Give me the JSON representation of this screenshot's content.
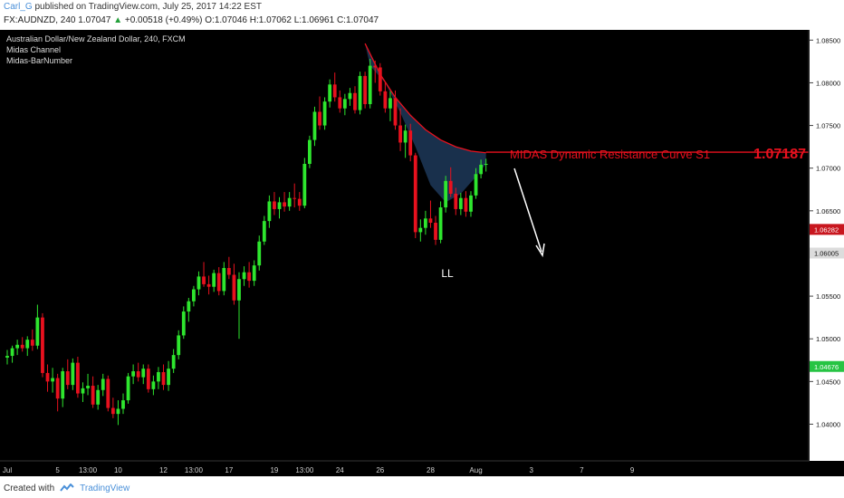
{
  "top": {
    "user": "Carl_G",
    "published": "published on TradingView.com, July 25, 2017 14:22 EST"
  },
  "info": {
    "symbol": "FX:AUDNZD, 240",
    "price": "1.07047",
    "change": "+0.00518 (+0.49%)",
    "ohlc": "O:1.07046 H:1.07062 L:1.06961 C:1.07047"
  },
  "footer": {
    "created": "Created with",
    "brand": "TradingView"
  },
  "colors": {
    "bg": "#000000",
    "up": "#2ee62e",
    "down": "#e8111e",
    "curve": "#e8111e",
    "fill": "#1c3554",
    "arrow": "#ffffff"
  },
  "chart_data": {
    "type": "candlestick",
    "header": [
      "Australian Dollar/New Zealand Dollar, 240, FXCM",
      "Midas Channel",
      "Midas-BarNumber"
    ],
    "ylim": [
      1.0357,
      1.0862
    ],
    "y_ticks": [
      "1.08500",
      "1.08000",
      "1.07500",
      "1.07000",
      "1.06500",
      "1.05500",
      "1.05000",
      "1.04500",
      "1.04000"
    ],
    "price_labels": [
      {
        "value": 1.06282,
        "text": "1.06282",
        "bg": "#c8161e",
        "fg": "#ffffff"
      },
      {
        "value": 1.06005,
        "text": "1.06005",
        "bg": "#dcdcdc",
        "fg": "#111111"
      },
      {
        "value": 1.04676,
        "text": "1.04676",
        "bg": "#26c443",
        "fg": "#ffffff"
      }
    ],
    "x_ticks": [
      "Jul",
      "5",
      "13:00",
      "10",
      "12",
      "13:00",
      "17",
      "19",
      "13:00",
      "24",
      "26",
      "28",
      "Aug",
      "3",
      "7",
      "9"
    ],
    "x_tick_bars": [
      0,
      10,
      16,
      22,
      31,
      37,
      44,
      53,
      59,
      66,
      74,
      84,
      93,
      104,
      114,
      124
    ],
    "candles": [
      [
        1.0478,
        1.0487,
        1.047,
        1.048
      ],
      [
        1.048,
        1.0492,
        1.0472,
        1.0489
      ],
      [
        1.0489,
        1.0499,
        1.0481,
        1.0493
      ],
      [
        1.0493,
        1.0502,
        1.0485,
        1.0489
      ],
      [
        1.0489,
        1.0503,
        1.048,
        1.0499
      ],
      [
        1.0499,
        1.0511,
        1.0486,
        1.0492
      ],
      [
        1.0492,
        1.054,
        1.0488,
        1.0525
      ],
      [
        1.0525,
        1.053,
        1.0455,
        1.046
      ],
      [
        1.046,
        1.047,
        1.0438,
        1.045
      ],
      [
        1.045,
        1.0466,
        1.0437,
        1.0454
      ],
      [
        1.0454,
        1.0459,
        1.0415,
        1.043
      ],
      [
        1.043,
        1.0466,
        1.042,
        1.0462
      ],
      [
        1.0462,
        1.0476,
        1.0441,
        1.0446
      ],
      [
        1.0446,
        1.0477,
        1.044,
        1.0472
      ],
      [
        1.0472,
        1.0479,
        1.0431,
        1.0436
      ],
      [
        1.0436,
        1.0449,
        1.0426,
        1.0442
      ],
      [
        1.0442,
        1.0459,
        1.0434,
        1.0445
      ],
      [
        1.0445,
        1.0456,
        1.0419,
        1.0423
      ],
      [
        1.0423,
        1.0446,
        1.0417,
        1.044
      ],
      [
        1.044,
        1.0459,
        1.0433,
        1.0453
      ],
      [
        1.0453,
        1.0457,
        1.0415,
        1.0419
      ],
      [
        1.0419,
        1.0431,
        1.0407,
        1.0412
      ],
      [
        1.0412,
        1.0428,
        1.0399,
        1.0418
      ],
      [
        1.0418,
        1.0436,
        1.0412,
        1.0428
      ],
      [
        1.0428,
        1.046,
        1.0424,
        1.0456
      ],
      [
        1.0456,
        1.047,
        1.0447,
        1.0462
      ],
      [
        1.0462,
        1.0472,
        1.045,
        1.0455
      ],
      [
        1.0455,
        1.047,
        1.0447,
        1.0465
      ],
      [
        1.0465,
        1.047,
        1.0437,
        1.0441
      ],
      [
        1.0441,
        1.0457,
        1.0434,
        1.045
      ],
      [
        1.045,
        1.0467,
        1.0441,
        1.0461
      ],
      [
        1.0461,
        1.047,
        1.044,
        1.0446
      ],
      [
        1.0446,
        1.0474,
        1.0439,
        1.0465
      ],
      [
        1.0465,
        1.0488,
        1.046,
        1.0481
      ],
      [
        1.0481,
        1.051,
        1.0476,
        1.0504
      ],
      [
        1.0504,
        1.0538,
        1.05,
        1.0532
      ],
      [
        1.0532,
        1.0548,
        1.052,
        1.0544
      ],
      [
        1.0544,
        1.0562,
        1.0538,
        1.0558
      ],
      [
        1.0558,
        1.0579,
        1.0551,
        1.0573
      ],
      [
        1.0573,
        1.059,
        1.0561,
        1.0564
      ],
      [
        1.0564,
        1.0574,
        1.0552,
        1.0561
      ],
      [
        1.0561,
        1.0581,
        1.0555,
        1.0577
      ],
      [
        1.0577,
        1.0584,
        1.0551,
        1.0556
      ],
      [
        1.0556,
        1.059,
        1.0551,
        1.0583
      ],
      [
        1.0583,
        1.0596,
        1.057,
        1.0575
      ],
      [
        1.0575,
        1.0588,
        1.054,
        1.0545
      ],
      [
        1.0545,
        1.0578,
        1.05,
        1.057
      ],
      [
        1.057,
        1.0585,
        1.0562,
        1.0578
      ],
      [
        1.0578,
        1.059,
        1.056,
        1.0568
      ],
      [
        1.0568,
        1.0592,
        1.0562,
        1.0586
      ],
      [
        1.0586,
        1.0621,
        1.058,
        1.0614
      ],
      [
        1.0614,
        1.0644,
        1.061,
        1.0638
      ],
      [
        1.0638,
        1.0668,
        1.063,
        1.0661
      ],
      [
        1.0661,
        1.0672,
        1.0645,
        1.0652
      ],
      [
        1.0652,
        1.0666,
        1.0641,
        1.066
      ],
      [
        1.066,
        1.0672,
        1.0649,
        1.0655
      ],
      [
        1.0655,
        1.0672,
        1.065,
        1.0665
      ],
      [
        1.0665,
        1.0682,
        1.0654,
        1.0664
      ],
      [
        1.0664,
        1.0672,
        1.065,
        1.0656
      ],
      [
        1.0656,
        1.0712,
        1.0653,
        1.0705
      ],
      [
        1.0705,
        1.0738,
        1.07,
        1.0733
      ],
      [
        1.0733,
        1.0772,
        1.0726,
        1.0766
      ],
      [
        1.0766,
        1.0784,
        1.0745,
        1.075
      ],
      [
        1.075,
        1.0783,
        1.0745,
        1.0778
      ],
      [
        1.0778,
        1.0804,
        1.0771,
        1.0798
      ],
      [
        1.0798,
        1.0812,
        1.0778,
        1.0783
      ],
      [
        1.0783,
        1.0791,
        1.0765,
        1.077
      ],
      [
        1.077,
        1.0787,
        1.0762,
        1.0781
      ],
      [
        1.0781,
        1.0794,
        1.0773,
        1.0788
      ],
      [
        1.0788,
        1.0796,
        1.0764,
        1.0768
      ],
      [
        1.0768,
        1.0813,
        1.0763,
        1.0808
      ],
      [
        1.0808,
        1.0813,
        1.077,
        1.0775
      ],
      [
        1.0775,
        1.0828,
        1.077,
        1.082
      ],
      [
        1.082,
        1.0826,
        1.08,
        1.0818
      ],
      [
        1.0818,
        1.0823,
        1.0785,
        1.079
      ],
      [
        1.079,
        1.0801,
        1.0765,
        1.077
      ],
      [
        1.077,
        1.079,
        1.0755,
        1.0782
      ],
      [
        1.0782,
        1.0791,
        1.0745,
        1.075
      ],
      [
        1.075,
        1.077,
        1.072,
        1.073
      ],
      [
        1.073,
        1.0751,
        1.0712,
        1.0744
      ],
      [
        1.0744,
        1.0752,
        1.0708,
        1.0715
      ],
      [
        1.0715,
        1.0718,
        1.0618,
        1.0625
      ],
      [
        1.0625,
        1.064,
        1.0614,
        1.063
      ],
      [
        1.063,
        1.065,
        1.0622,
        1.0641
      ],
      [
        1.0641,
        1.0662,
        1.063,
        1.0636
      ],
      [
        1.0636,
        1.0644,
        1.061,
        1.0616
      ],
      [
        1.0616,
        1.0661,
        1.0612,
        1.0654
      ],
      [
        1.0654,
        1.0691,
        1.0648,
        1.0685
      ],
      [
        1.0685,
        1.0701,
        1.0666,
        1.067
      ],
      [
        1.067,
        1.0677,
        1.0645,
        1.0652
      ],
      [
        1.0652,
        1.0671,
        1.0645,
        1.0665
      ],
      [
        1.0665,
        1.0673,
        1.0643,
        1.0649
      ],
      [
        1.0649,
        1.0673,
        1.0643,
        1.0668
      ],
      [
        1.0668,
        1.07,
        1.0664,
        1.0693
      ],
      [
        1.0693,
        1.071,
        1.0688,
        1.0704
      ],
      [
        1.0704,
        1.0711,
        1.0696,
        1.0705
      ]
    ],
    "midas_curve": [
      [
        71,
        1.0846
      ],
      [
        74,
        1.081
      ],
      [
        77,
        1.0783
      ],
      [
        80,
        1.0762
      ],
      [
        83,
        1.0745
      ],
      [
        86,
        1.0733
      ],
      [
        89,
        1.0725
      ],
      [
        92,
        1.072
      ],
      [
        95,
        1.0718
      ]
    ],
    "resistance_line": {
      "value": 1.07187,
      "from_bar": 95
    },
    "annotations": [
      {
        "text": "MIDAS Dynamic Resistance Curve S1",
        "color": "#e8111e"
      },
      {
        "text": "1.07187",
        "color": "#e8111e"
      },
      {
        "text": "LL",
        "color": "#ffffff"
      }
    ],
    "grid": false
  }
}
